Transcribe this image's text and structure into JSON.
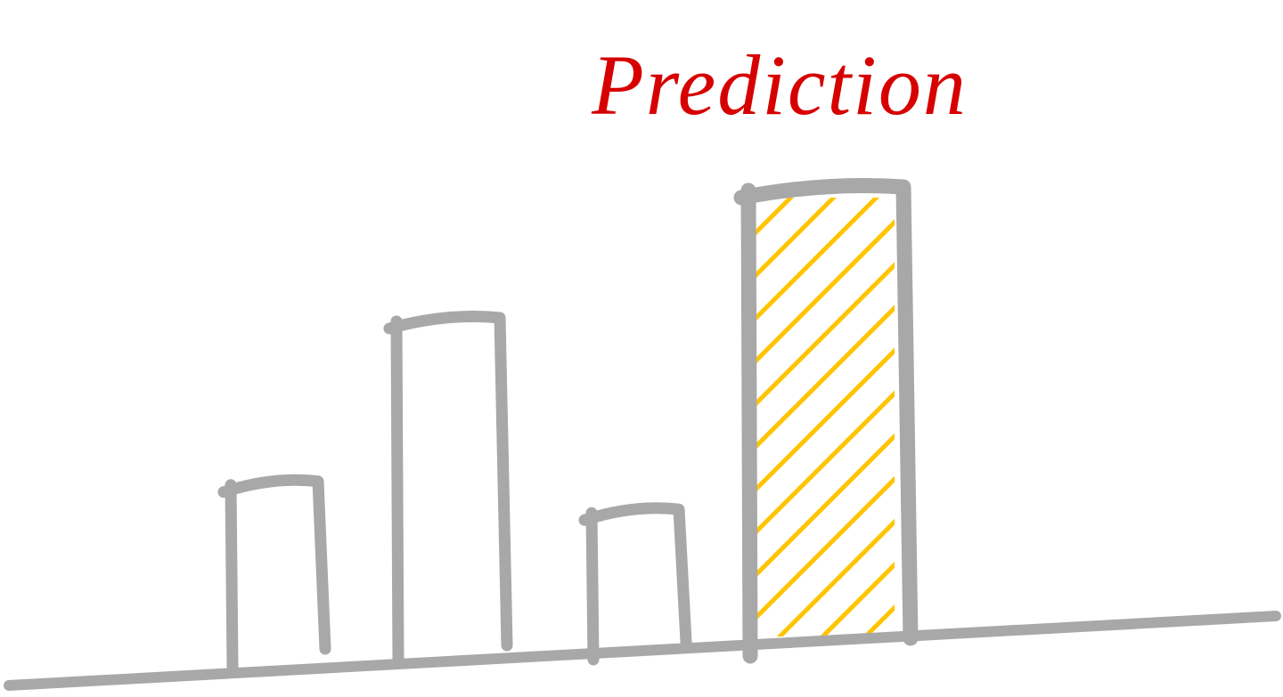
{
  "chart_data": {
    "type": "bar",
    "title": "",
    "xlabel": "",
    "ylabel": "",
    "ylim": [
      0,
      100
    ],
    "grid": false,
    "values": [
      37,
      72,
      31,
      100
    ],
    "highlight_index": 3,
    "annotation": "Prediction",
    "colors": {
      "bar_stroke": "#a8a8a8",
      "axis": "#a8a8a8",
      "highlight_hatch": "#ffc400",
      "annotation": "#d60000",
      "background": "#ffffff"
    }
  }
}
